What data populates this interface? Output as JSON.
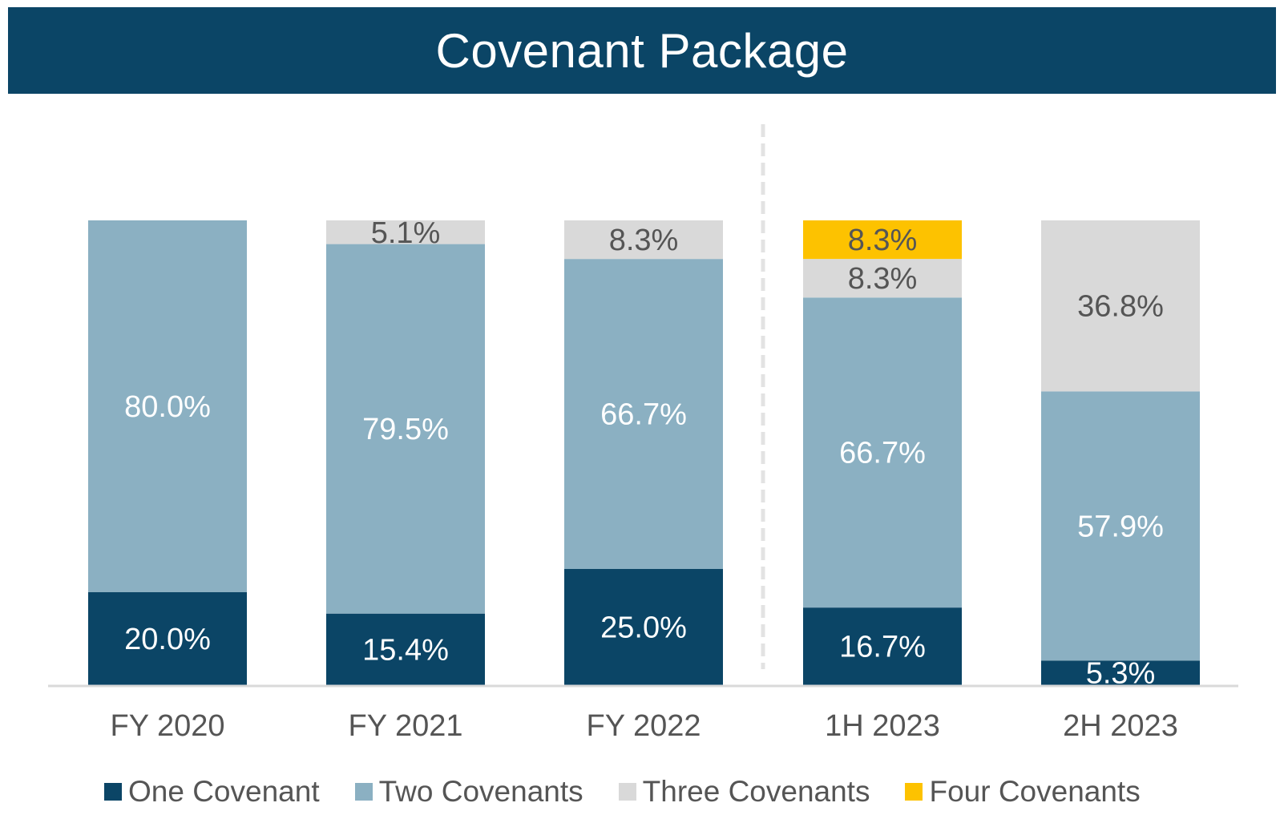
{
  "title": "Covenant Package",
  "colors": {
    "title_bg": "#0b4566",
    "one": "#0b4566",
    "two": "#8bb0c2",
    "three": "#d9d9d9",
    "four": "#fdc200"
  },
  "chart_data": {
    "type": "bar",
    "stacked": true,
    "categories": [
      "FY 2020",
      "FY 2021",
      "FY 2022",
      "1H 2023",
      "2H 2023"
    ],
    "series": [
      {
        "name": "One Covenant",
        "color": "#0b4566",
        "values": [
          20.0,
          15.4,
          25.0,
          16.7,
          5.3
        ],
        "labels": [
          "20.0%",
          "15.4%",
          "25.0%",
          "16.7%",
          "5.3%"
        ]
      },
      {
        "name": "Two Covenants",
        "color": "#8bb0c2",
        "values": [
          80.0,
          79.5,
          66.7,
          66.7,
          57.9
        ],
        "labels": [
          "80.0%",
          "79.5%",
          "66.7%",
          "66.7%",
          "57.9%"
        ]
      },
      {
        "name": "Three Covenants",
        "color": "#d9d9d9",
        "values": [
          0,
          5.1,
          8.3,
          8.3,
          36.8
        ],
        "labels": [
          "",
          "5.1%",
          "8.3%",
          "8.3%",
          "36.8%"
        ]
      },
      {
        "name": "Four Covenants",
        "color": "#fdc200",
        "values": [
          0,
          0,
          0,
          8.3,
          0
        ],
        "labels": [
          "",
          "",
          "",
          "8.3%",
          ""
        ]
      }
    ],
    "ylim": [
      0,
      100
    ],
    "legend": "bottom",
    "grid": false,
    "divider": "dashed line between FY 2022 and 1H 2023"
  }
}
